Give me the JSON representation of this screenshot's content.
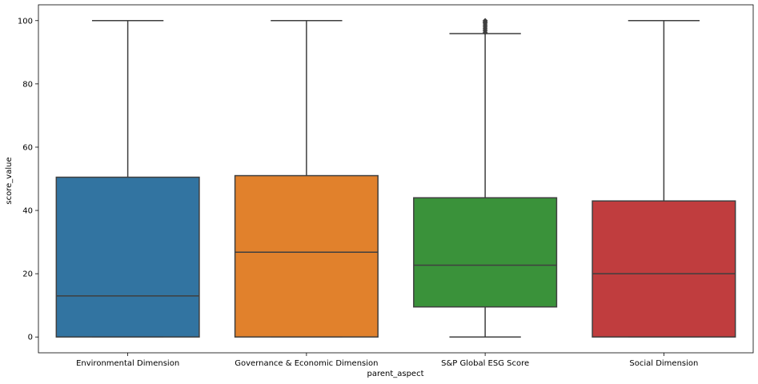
{
  "chart_data": {
    "type": "box",
    "xlabel": "parent_aspect",
    "ylabel": "score_value",
    "ylim": [
      -5,
      105
    ],
    "yticks": [
      0,
      20,
      40,
      60,
      80,
      100
    ],
    "grid": false,
    "categories": [
      "Environmental Dimension",
      "Governance & Economic Dimension",
      "S&P Global ESG Score",
      "Social Dimension"
    ],
    "colors": [
      "#3274a1",
      "#e1812c",
      "#3a923a",
      "#c03d3e"
    ],
    "boxes": [
      {
        "min": 0,
        "q1": 0,
        "median": 13,
        "q3": 50.5,
        "max": 100,
        "outliers": []
      },
      {
        "min": 0,
        "q1": 0,
        "median": 26.8,
        "q3": 51,
        "max": 100,
        "outliers": []
      },
      {
        "min": 0,
        "q1": 9.5,
        "median": 22.7,
        "q3": 44,
        "max": 95.9,
        "outliers": [
          96.2,
          96.8,
          97.4,
          98,
          98.6,
          99.2,
          99.6,
          100
        ]
      },
      {
        "min": 0,
        "q1": 0,
        "median": 20,
        "q3": 43,
        "max": 100,
        "outliers": []
      }
    ]
  }
}
